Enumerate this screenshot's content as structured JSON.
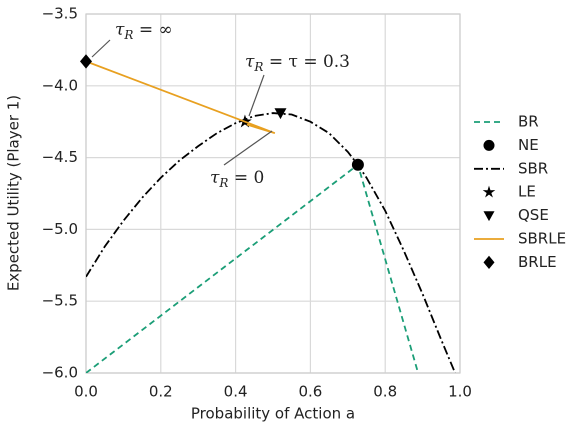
{
  "chart_data": {
    "type": "line",
    "xlabel": "Probability of Action a",
    "ylabel": "Expected Utility (Player 1)",
    "xlim": [
      0,
      1.0
    ],
    "ylim": [
      -6.0,
      -3.5
    ],
    "xticks": [
      {
        "value": 0,
        "label": "0.0"
      },
      {
        "value": 0.2,
        "label": "0.2"
      },
      {
        "value": 0.4,
        "label": "0.4"
      },
      {
        "value": 0.6,
        "label": "0.6"
      },
      {
        "value": 0.8,
        "label": "0.8"
      },
      {
        "value": 1.0,
        "label": "1.0"
      }
    ],
    "yticks": [
      {
        "value": -6.0,
        "label": "−6.0"
      },
      {
        "value": -5.5,
        "label": "−5.5"
      },
      {
        "value": -5.0,
        "label": "−5.0"
      },
      {
        "value": -4.5,
        "label": "−4.5"
      },
      {
        "value": -4.0,
        "label": "−4.0"
      },
      {
        "value": -3.5,
        "label": "−3.5"
      }
    ],
    "grid": true,
    "legend": "right",
    "series": [
      {
        "name": "BR",
        "color": "#1b9e77",
        "style": "dashed",
        "x": [
          0,
          0.727,
          0.888
        ],
        "values": [
          -6.0,
          -4.55,
          -6.0
        ]
      },
      {
        "name": "NE",
        "color": "#000000",
        "marker": "circle",
        "x": [
          0.727
        ],
        "values": [
          -4.55
        ]
      },
      {
        "name": "SBR",
        "color": "#000000",
        "style": "dashdot",
        "x": [
          0,
          0.05,
          0.1,
          0.15,
          0.2,
          0.25,
          0.3,
          0.35,
          0.4,
          0.45,
          0.5,
          0.55,
          0.6,
          0.65,
          0.7,
          0.727,
          0.75,
          0.8,
          0.85,
          0.9,
          0.95,
          0.987
        ],
        "values": [
          -5.33,
          -5.12,
          -4.94,
          -4.78,
          -4.64,
          -4.52,
          -4.42,
          -4.33,
          -4.26,
          -4.21,
          -4.19,
          -4.2,
          -4.25,
          -4.33,
          -4.46,
          -4.55,
          -4.64,
          -4.87,
          -5.15,
          -5.45,
          -5.77,
          -6.0
        ]
      },
      {
        "name": "LE",
        "color": "#000000",
        "marker": "star",
        "x": [
          0.425
        ],
        "values": [
          -4.25
        ]
      },
      {
        "name": "QSE",
        "color": "#000000",
        "marker": "triangle_down",
        "x": [
          0.52
        ],
        "values": [
          -4.19
        ]
      },
      {
        "name": "SBRLE",
        "color": "#e8a020",
        "style": "solid",
        "x": [
          0,
          0.425,
          0.505,
          0.43
        ],
        "values": [
          -3.83,
          -4.25,
          -4.33,
          -4.27
        ]
      },
      {
        "name": "BRLE",
        "color": "#000000",
        "marker": "diamond",
        "x": [
          0
        ],
        "values": [
          -3.83
        ]
      }
    ],
    "annotations": [
      {
        "symbol": "τ",
        "subscript": "R",
        "text": " = ∞"
      },
      {
        "symbol": "τ",
        "subscript": "R",
        "text": " = τ = 0.3"
      },
      {
        "symbol": "τ",
        "subscript": "R",
        "text": " = 0"
      }
    ]
  }
}
